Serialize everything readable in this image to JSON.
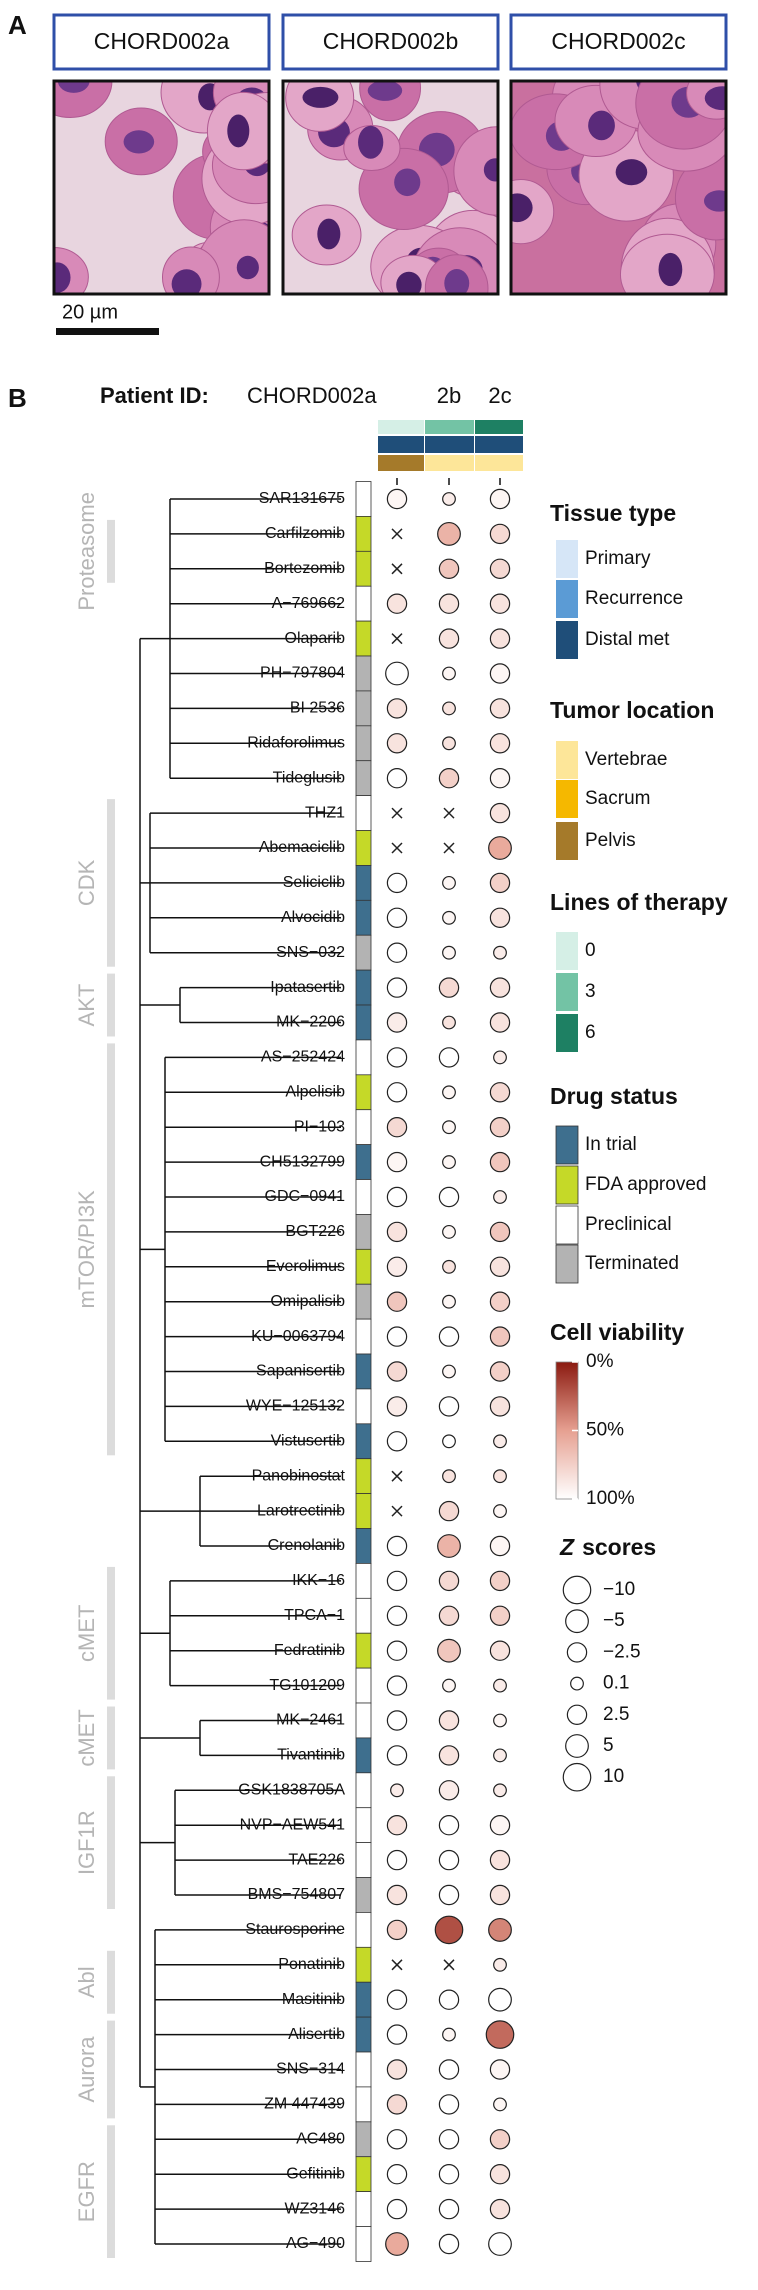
{
  "panel_a": {
    "label": "A",
    "samples": [
      "CHORD002a",
      "CHORD002b",
      "CHORD002c"
    ],
    "scale_bar": "20 µm"
  },
  "panel_b": {
    "label": "B",
    "header": {
      "prefix": "Patient ID:",
      "samples": [
        "CHORD002a",
        "2b",
        "2c"
      ]
    },
    "annotations": {
      "lines_of_therapy": [
        0,
        3,
        6
      ],
      "tissue_type": [
        "Distal met",
        "Distal met",
        "Distal met"
      ],
      "tumor_location": [
        "Pelvis",
        "Vertebrae",
        "Vertebrae"
      ]
    },
    "groups": [
      {
        "label": "Proteasome",
        "first": 1,
        "last": 2,
        "label_first": 0,
        "label_last": 3
      },
      {
        "label": "CDK",
        "first": 9,
        "last": 13,
        "label_first": 9,
        "label_last": 13
      },
      {
        "label": "AKT",
        "first": 14,
        "last": 15,
        "label_first": 14,
        "label_last": 15
      },
      {
        "label": "mTOR/PI3K",
        "first": 16,
        "last": 27,
        "label_first": 16,
        "label_last": 27
      },
      {
        "label": "cMET",
        "first": 31,
        "last": 34,
        "label_first": 31,
        "label_last": 34
      },
      {
        "label": "cMET",
        "first": 35,
        "last": 36,
        "label_first": 35,
        "label_last": 36
      },
      {
        "label": "IGF1R",
        "first": 37,
        "last": 40,
        "label_first": 37,
        "label_last": 40
      },
      {
        "label": "Abl",
        "first": 42,
        "last": 43,
        "label_first": 42,
        "label_last": 43
      },
      {
        "label": "Aurora",
        "first": 44,
        "last": 46,
        "label_first": 44,
        "label_last": 46
      },
      {
        "label": "EGFR",
        "first": 47,
        "last": 50,
        "label_first": 47,
        "label_last": 50
      }
    ],
    "drugs": [
      {
        "name": "SAR131675",
        "status": "Preclinical",
        "viability": [
          95,
          90,
          95
        ],
        "z": [
          2.5,
          0.1,
          2.5
        ]
      },
      {
        "name": "Carfilzomib",
        "status": "FDA approved",
        "viability": [
          null,
          60,
          80
        ],
        "z": [
          null,
          -5,
          -2.5
        ]
      },
      {
        "name": "Bortezomib",
        "status": "FDA approved",
        "viability": [
          null,
          70,
          80
        ],
        "z": [
          null,
          -2.5,
          -2.5
        ]
      },
      {
        "name": "A−769662",
        "status": "Preclinical",
        "viability": [
          85,
          85,
          85
        ],
        "z": [
          2.5,
          -2.5,
          -2.5
        ]
      },
      {
        "name": "Olaparib",
        "status": "FDA approved",
        "viability": [
          null,
          85,
          85
        ],
        "z": [
          null,
          -2.5,
          -2.5
        ]
      },
      {
        "name": "PH−797804",
        "status": "Terminated",
        "viability": [
          100,
          95,
          95
        ],
        "z": [
          5,
          0.1,
          2.5
        ]
      },
      {
        "name": "BI 2536",
        "status": "Terminated",
        "viability": [
          85,
          85,
          85
        ],
        "z": [
          -2.5,
          0.1,
          -2.5
        ]
      },
      {
        "name": "Ridaforolimus",
        "status": "Terminated",
        "viability": [
          85,
          85,
          85
        ],
        "z": [
          -2.5,
          0.1,
          -2.5
        ]
      },
      {
        "name": "Tideglusib",
        "status": "Terminated",
        "viability": [
          100,
          75,
          95
        ],
        "z": [
          2.5,
          -2.5,
          2.5
        ]
      },
      {
        "name": "THZ1",
        "status": "Preclinical",
        "viability": [
          null,
          null,
          85
        ],
        "z": [
          null,
          null,
          -2.5
        ]
      },
      {
        "name": "Abemaciclib",
        "status": "FDA approved",
        "viability": [
          null,
          null,
          55
        ],
        "z": [
          null,
          null,
          -5
        ]
      },
      {
        "name": "Seliciclib",
        "status": "In trial",
        "viability": [
          100,
          95,
          75
        ],
        "z": [
          2.5,
          0.1,
          -2.5
        ]
      },
      {
        "name": "Alvocidib",
        "status": "In trial",
        "viability": [
          100,
          95,
          85
        ],
        "z": [
          2.5,
          0.1,
          -2.5
        ]
      },
      {
        "name": "SNS−032",
        "status": "Terminated",
        "viability": [
          100,
          95,
          90
        ],
        "z": [
          2.5,
          0.1,
          0.1
        ]
      },
      {
        "name": "Ipatasertib",
        "status": "In trial",
        "viability": [
          100,
          80,
          85
        ],
        "z": [
          2.5,
          -2.5,
          -2.5
        ]
      },
      {
        "name": "MK−2206",
        "status": "In trial",
        "viability": [
          90,
          85,
          85
        ],
        "z": [
          2.5,
          0.1,
          -2.5
        ]
      },
      {
        "name": "AS−252424",
        "status": "Preclinical",
        "viability": [
          100,
          100,
          90
        ],
        "z": [
          2.5,
          2.5,
          0.1
        ]
      },
      {
        "name": "Alpelisib",
        "status": "FDA approved",
        "viability": [
          100,
          95,
          80
        ],
        "z": [
          2.5,
          0.1,
          -2.5
        ]
      },
      {
        "name": "PI−103",
        "status": "Preclinical",
        "viability": [
          80,
          95,
          75
        ],
        "z": [
          -2.5,
          0.1,
          -2.5
        ]
      },
      {
        "name": "CH5132799",
        "status": "In trial",
        "viability": [
          95,
          95,
          70
        ],
        "z": [
          2.5,
          0.1,
          -2.5
        ]
      },
      {
        "name": "GDC−0941",
        "status": "Preclinical",
        "viability": [
          100,
          100,
          90
        ],
        "z": [
          2.5,
          2.5,
          0.1
        ]
      },
      {
        "name": "BGT226",
        "status": "Terminated",
        "viability": [
          85,
          95,
          70
        ],
        "z": [
          -2.5,
          0.1,
          -2.5
        ]
      },
      {
        "name": "Everolimus",
        "status": "FDA approved",
        "viability": [
          90,
          85,
          85
        ],
        "z": [
          2.5,
          0.1,
          -2.5
        ]
      },
      {
        "name": "Omipalisib",
        "status": "Terminated",
        "viability": [
          70,
          95,
          75
        ],
        "z": [
          -2.5,
          0.1,
          -2.5
        ]
      },
      {
        "name": "KU−0063794",
        "status": "Preclinical",
        "viability": [
          100,
          100,
          70
        ],
        "z": [
          2.5,
          2.5,
          -2.5
        ]
      },
      {
        "name": "Sapanisertib",
        "status": "In trial",
        "viability": [
          80,
          95,
          75
        ],
        "z": [
          -2.5,
          0.1,
          -2.5
        ]
      },
      {
        "name": "WYE−125132",
        "status": "Preclinical",
        "viability": [
          90,
          100,
          85
        ],
        "z": [
          2.5,
          2.5,
          -2.5
        ]
      },
      {
        "name": "Vistusertib",
        "status": "In trial",
        "viability": [
          100,
          100,
          90
        ],
        "z": [
          2.5,
          0.1,
          0.1
        ]
      },
      {
        "name": "Panobinostat",
        "status": "FDA approved",
        "viability": [
          null,
          85,
          85
        ],
        "z": [
          null,
          0.1,
          0.1
        ]
      },
      {
        "name": "Larotrectinib",
        "status": "FDA approved",
        "viability": [
          null,
          80,
          95
        ],
        "z": [
          null,
          -2.5,
          0.1
        ]
      },
      {
        "name": "Crenolanib",
        "status": "In trial",
        "viability": [
          100,
          60,
          95
        ],
        "z": [
          2.5,
          -5,
          2.5
        ]
      },
      {
        "name": "IKK−16",
        "status": "Preclinical",
        "viability": [
          100,
          80,
          75
        ],
        "z": [
          2.5,
          -2.5,
          -2.5
        ]
      },
      {
        "name": "TPCA−1",
        "status": "Preclinical",
        "viability": [
          100,
          80,
          75
        ],
        "z": [
          2.5,
          -2.5,
          -2.5
        ]
      },
      {
        "name": "Fedratinib",
        "status": "FDA approved",
        "viability": [
          100,
          70,
          85
        ],
        "z": [
          2.5,
          -5,
          -2.5
        ]
      },
      {
        "name": "TG101209",
        "status": "Preclinical",
        "viability": [
          100,
          95,
          90
        ],
        "z": [
          2.5,
          0.1,
          0.1
        ]
      },
      {
        "name": "MK−2461",
        "status": "Preclinical",
        "viability": [
          100,
          85,
          95
        ],
        "z": [
          2.5,
          -2.5,
          0.1
        ]
      },
      {
        "name": "Tivantinib",
        "status": "In trial",
        "viability": [
          100,
          85,
          90
        ],
        "z": [
          2.5,
          -2.5,
          0.1
        ]
      },
      {
        "name": "GSK1838705A",
        "status": "Preclinical",
        "viability": [
          90,
          90,
          90
        ],
        "z": [
          0.1,
          -2.5,
          0.1
        ]
      },
      {
        "name": "NVP−AEW541",
        "status": "Preclinical",
        "viability": [
          85,
          100,
          95
        ],
        "z": [
          -2.5,
          2.5,
          2.5
        ]
      },
      {
        "name": "TAE226",
        "status": "Preclinical",
        "viability": [
          100,
          100,
          85
        ],
        "z": [
          2.5,
          2.5,
          -2.5
        ]
      },
      {
        "name": "BMS−754807",
        "status": "Terminated",
        "viability": [
          85,
          100,
          85
        ],
        "z": [
          -2.5,
          2.5,
          -2.5
        ]
      },
      {
        "name": "Staurosporine",
        "status": "Preclinical",
        "viability": [
          75,
          20,
          40
        ],
        "z": [
          -2.5,
          -10,
          -5
        ]
      },
      {
        "name": "Ponatinib",
        "status": "FDA approved",
        "viability": [
          null,
          null,
          90
        ],
        "z": [
          null,
          null,
          0.1
        ]
      },
      {
        "name": "Masitinib",
        "status": "In trial",
        "viability": [
          100,
          100,
          100
        ],
        "z": [
          2.5,
          2.5,
          5
        ]
      },
      {
        "name": "Alisertib",
        "status": "In trial",
        "viability": [
          100,
          95,
          30
        ],
        "z": [
          2.5,
          0.1,
          -10
        ]
      },
      {
        "name": "SNS−314",
        "status": "Preclinical",
        "viability": [
          85,
          100,
          95
        ],
        "z": [
          -2.5,
          2.5,
          2.5
        ]
      },
      {
        "name": "ZM 447439",
        "status": "Preclinical",
        "viability": [
          80,
          100,
          95
        ],
        "z": [
          -2.5,
          2.5,
          0.1
        ]
      },
      {
        "name": "AC480",
        "status": "Terminated",
        "viability": [
          100,
          100,
          75
        ],
        "z": [
          2.5,
          2.5,
          -2.5
        ]
      },
      {
        "name": "Gefitinib",
        "status": "FDA approved",
        "viability": [
          100,
          100,
          85
        ],
        "z": [
          2.5,
          2.5,
          -2.5
        ]
      },
      {
        "name": "WZ3146",
        "status": "Preclinical",
        "viability": [
          100,
          100,
          85
        ],
        "z": [
          2.5,
          2.5,
          -2.5
        ]
      },
      {
        "name": "AG−490",
        "status": "Preclinical",
        "viability": [
          55,
          100,
          100
        ],
        "z": [
          -5,
          2.5,
          5
        ]
      }
    ],
    "legends": {
      "tissue_type": {
        "title": "Tissue type",
        "items": [
          {
            "label": "Primary",
            "color": "#d6e6f7"
          },
          {
            "label": "Recurrence",
            "color": "#5b9bd5"
          },
          {
            "label": "Distal met",
            "color": "#1f4e79"
          }
        ]
      },
      "tumor_location": {
        "title": "Tumor location",
        "items": [
          {
            "label": "Vertebrae",
            "color": "#fde699"
          },
          {
            "label": "Sacrum",
            "color": "#f5b800"
          },
          {
            "label": "Pelvis",
            "color": "#a57a2a"
          }
        ]
      },
      "lines_of_therapy": {
        "title": "Lines of therapy",
        "items": [
          {
            "label": 0,
            "color": "#d5efe6"
          },
          {
            "label": 3,
            "color": "#73c3a5"
          },
          {
            "label": 6,
            "color": "#1e8063"
          }
        ]
      },
      "drug_status": {
        "title": "Drug status",
        "items": [
          {
            "label": "In trial",
            "color": "#3e6f8e"
          },
          {
            "label": "FDA approved",
            "color": "#c5d928"
          },
          {
            "label": "Preclinical",
            "color": "#ffffff"
          },
          {
            "label": "Terminated",
            "color": "#b3b3b3"
          }
        ]
      },
      "cell_viability": {
        "title": "Cell viability",
        "ticks": [
          {
            "value": 0,
            "label": "0%"
          },
          {
            "value": 50,
            "label": "50%"
          },
          {
            "value": 100,
            "label": "100%"
          }
        ]
      },
      "z_scores": {
        "title_symbol": "Z",
        "title_rest": "scores",
        "ticks": [
          {
            "value": -10,
            "label": "−10"
          },
          {
            "value": -5,
            "label": "−5"
          },
          {
            "value": -2.5,
            "label": "−2.5"
          },
          0.1,
          2.5,
          5,
          10
        ]
      }
    }
  }
}
